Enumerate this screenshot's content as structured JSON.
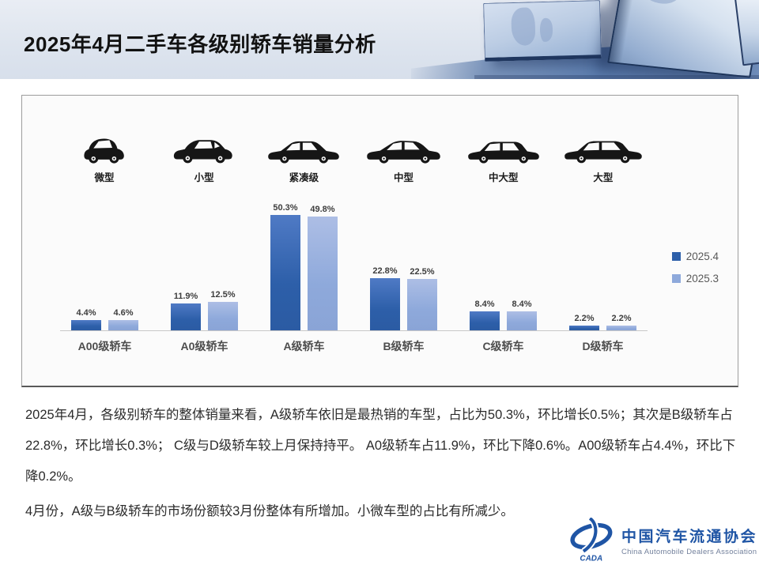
{
  "header": {
    "title": "2025年4月二手车各级别轿车销量分析"
  },
  "chart_data": {
    "type": "bar",
    "title": "",
    "categories": [
      "A00级轿车",
      "A0级轿车",
      "A级轿车",
      "B级轿车",
      "C级轿车",
      "D级轿车"
    ],
    "vehicle_types": [
      "微型",
      "小型",
      "紧凑级",
      "中型",
      "中大型",
      "大型"
    ],
    "series": [
      {
        "name": "2025.4",
        "color": "#2d5fa9",
        "values": [
          4.4,
          11.9,
          50.3,
          22.8,
          8.4,
          2.2
        ]
      },
      {
        "name": "2025.3",
        "color": "#8ea9db",
        "values": [
          4.6,
          12.5,
          49.8,
          22.5,
          8.4,
          2.2
        ]
      }
    ],
    "value_suffix": "%",
    "xlabel": "",
    "ylabel": "",
    "ylim": [
      0,
      55
    ],
    "grid": false,
    "legend_position": "right"
  },
  "analysis": {
    "paragraph1": "2025年4月，各级别轿车的整体销量来看，A级轿车依旧是最热销的车型，占比为50.3%，环比增长0.5%；其次是B级轿车占22.8%，环比增长0.3%；  C级与D级轿车较上月保持持平。  A0级轿车占11.9%，环比下降0.6%。A00级轿车占4.4%，环比下降0.2%。",
    "paragraph2": "4月份，A级与B级轿车的市场份额较3月份整体有所增加。小微车型的占比有所减少。"
  },
  "brand": {
    "acronym": "CADA",
    "name_cn": "中国汽车流通协会",
    "name_en": "China Automobile Dealers Association",
    "color": "#1f55a5"
  },
  "colors": {
    "series_current": "#2d5fa9",
    "series_previous": "#8ea9db",
    "panel_bg": "#fbfbfb",
    "header_floor": "#5c7dae",
    "text": "#2b2b2b"
  }
}
